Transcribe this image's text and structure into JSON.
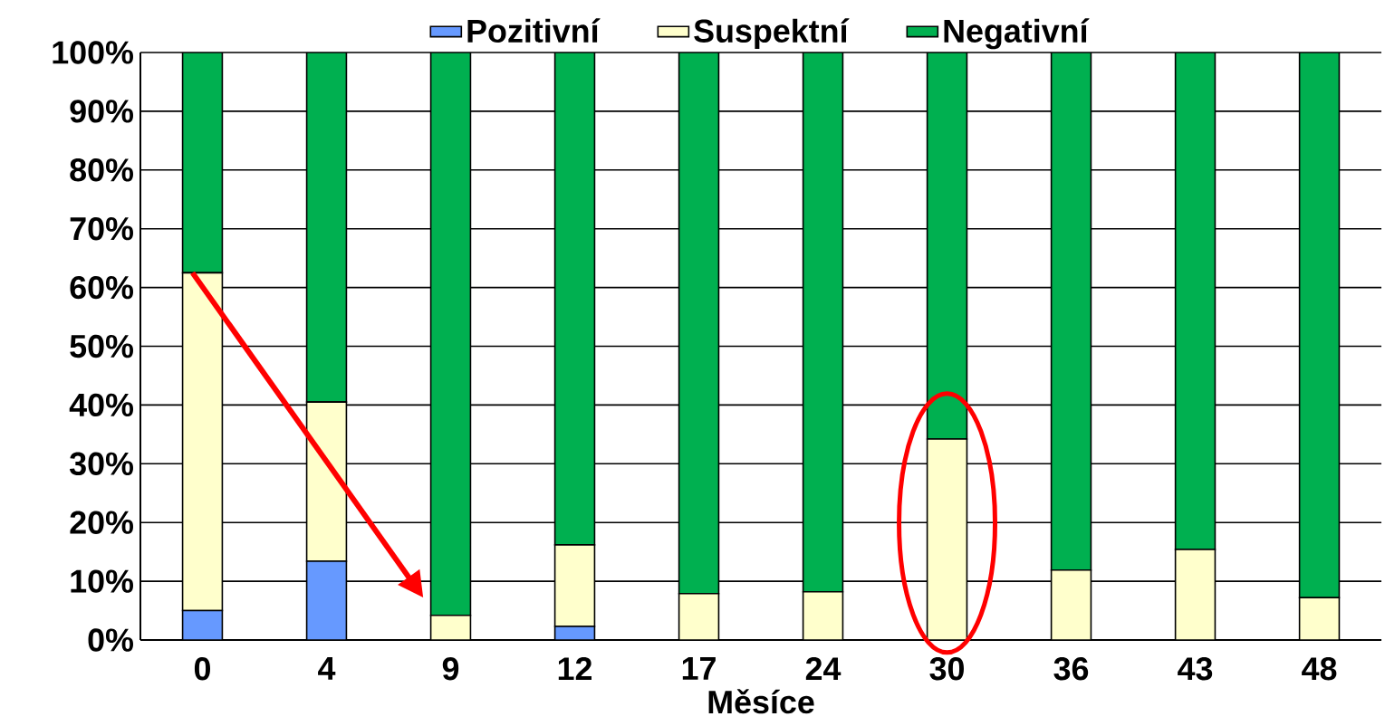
{
  "chart_data": {
    "type": "bar",
    "stacked": true,
    "xlabel": "Měsíce",
    "categories": [
      "0",
      "4",
      "9",
      "12",
      "17",
      "24",
      "30",
      "36",
      "43",
      "48"
    ],
    "series": [
      {
        "name": "Pozitivní",
        "color": "#6699ff",
        "values": [
          5,
          13.4,
          0,
          2.3,
          0,
          0,
          0,
          0,
          0,
          0
        ]
      },
      {
        "name": "Suspektní",
        "color": "#ffffcc",
        "values": [
          57.5,
          27.1,
          4.2,
          13.9,
          7.9,
          8.2,
          34.2,
          11.9,
          15.4,
          7.2
        ]
      },
      {
        "name": "Negativní",
        "color": "#00b050",
        "values": [
          37.5,
          59.5,
          95.8,
          83.8,
          92.1,
          91.8,
          65.8,
          88.1,
          84.6,
          92.8
        ]
      }
    ],
    "ylim": [
      0,
      100
    ],
    "yticks": [
      {
        "value": 0,
        "label": "0%"
      },
      {
        "value": 10,
        "label": "10%"
      },
      {
        "value": 20,
        "label": "20%"
      },
      {
        "value": 30,
        "label": "30%"
      },
      {
        "value": 40,
        "label": "40%"
      },
      {
        "value": 50,
        "label": "50%"
      },
      {
        "value": 60,
        "label": "60%"
      },
      {
        "value": 70,
        "label": "70%"
      },
      {
        "value": 80,
        "label": "80%"
      },
      {
        "value": 90,
        "label": "90%"
      },
      {
        "value": 100,
        "label": "100%"
      }
    ],
    "grid": "y",
    "legend": "top"
  }
}
